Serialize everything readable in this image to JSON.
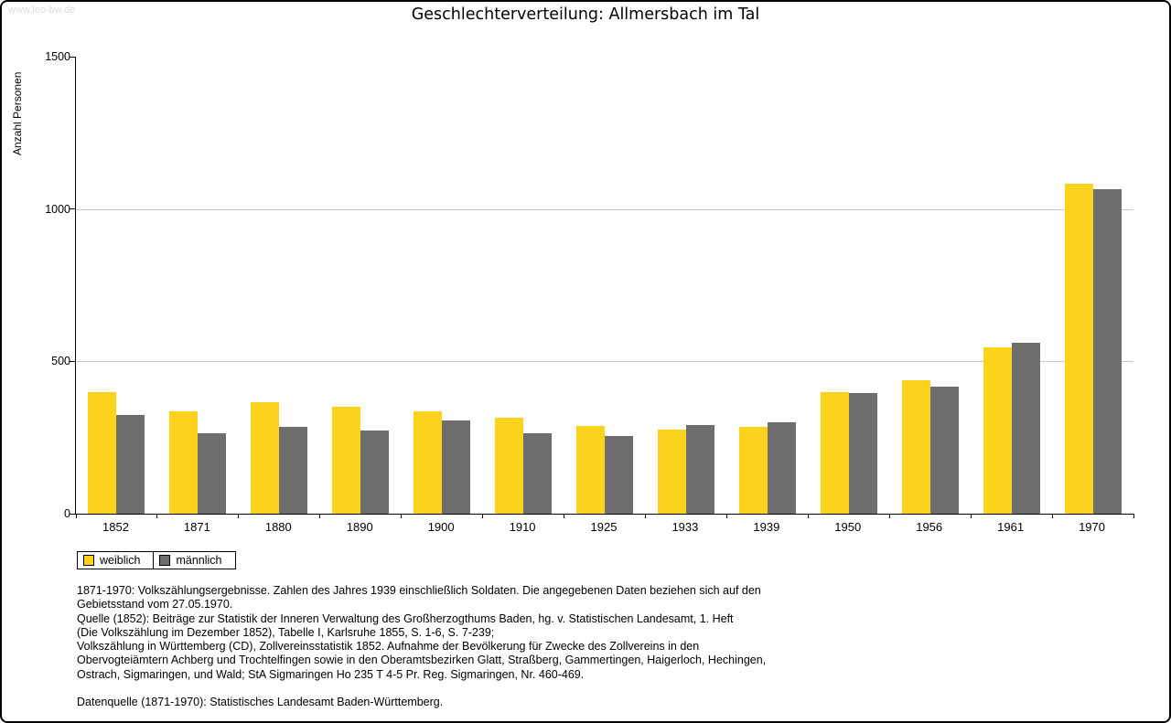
{
  "page": {
    "watermark": "www.leo-bw.de",
    "title": "Geschlechterverteilung: Allmersbach im Tal"
  },
  "chart_data": {
    "type": "bar",
    "title": "Geschlechterverteilung: Allmersbach im Tal",
    "xlabel": "",
    "ylabel": "Anzahl Personen",
    "ylim": [
      0,
      1500
    ],
    "yticks": [
      0,
      500,
      1000,
      1500
    ],
    "grid": "horizontal",
    "legend_position": "bottom-left",
    "categories": [
      "1852",
      "1871",
      "1880",
      "1890",
      "1900",
      "1910",
      "1925",
      "1933",
      "1939",
      "1950",
      "1956",
      "1961",
      "1970"
    ],
    "series": [
      {
        "name": "weiblich",
        "color": "#fcd21c",
        "values": [
          400,
          335,
          365,
          350,
          335,
          315,
          287,
          277,
          286,
          400,
          437,
          546,
          1083
        ]
      },
      {
        "name": "männlich",
        "color": "#6e6e6e",
        "values": [
          325,
          265,
          284,
          272,
          306,
          263,
          256,
          291,
          299,
          395,
          417,
          561,
          1064
        ]
      }
    ]
  },
  "footnotes": {
    "lines": [
      "1871-1970: Volkszählungsergebnisse. Zahlen des Jahres 1939 einschließlich Soldaten. Die angegebenen Daten beziehen sich auf den",
      "Gebietsstand vom 27.05.1970.",
      "Quelle (1852): Beiträge zur Statistik der Inneren Verwaltung des Großherzogthums Baden, hg. v. Statistischen Landesamt, 1. Heft",
      "(Die Volkszählung im Dezember 1852), Tabelle I, Karlsruhe 1855, S. 1-6, S. 7-239;",
      "Volkszählung in Württemberg (CD), Zollvereinsstatistik 1852. Aufnahme der Bevölkerung für Zwecke des Zollvereins in den",
      "Obervogteiämtern Achberg und Trochtelfingen sowie in den Oberamtsbezirken Glatt, Straßberg, Gammertingen, Haigerloch, Hechingen,",
      "Ostrach, Sigmaringen, und Wald; StA Sigmaringen Ho 235 T 4-5 Pr. Reg. Sigmaringen, Nr. 460-469.",
      "",
      "Datenquelle (1871-1970): Statistisches Landesamt Baden-Württemberg."
    ]
  }
}
